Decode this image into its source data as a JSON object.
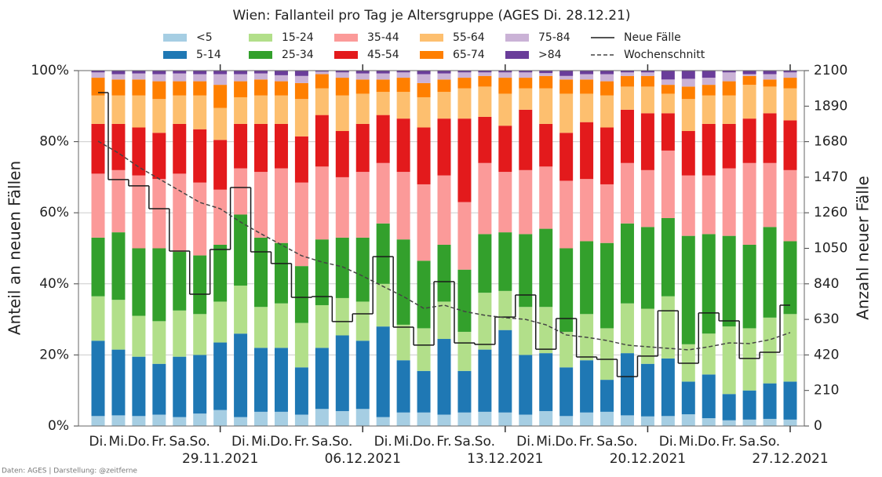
{
  "chart_data": {
    "type": "bar",
    "stacked": true,
    "title": "Wien: Fallanteil pro Tag je Altersgruppe (AGES Di. 28.12.21)",
    "ylabel": "Anteil an neuen Fällen",
    "y2label": "Anzahl neuer Fälle",
    "source": "Daten: AGES | Darstellung: @zeitferne",
    "categories": [
      "Di.",
      "Mi.",
      "Do.",
      "Fr.",
      "Sa.",
      "So.",
      "29.11.2021",
      "Di.",
      "Mi.",
      "Do.",
      "Fr.",
      "Sa.",
      "So.",
      "06.12.2021",
      "Di.",
      "Mi.",
      "Do.",
      "Fr.",
      "Sa.",
      "So.",
      "13.12.2021",
      "Di.",
      "Mi.",
      "Do.",
      "Fr.",
      "Sa.",
      "So.",
      "20.12.2021",
      "Di.",
      "Mi.",
      "Do.",
      "Fr.",
      "Sa.",
      "So.",
      "27.12.2021"
    ],
    "series": [
      {
        "name": "<5",
        "color": "#a6cee3",
        "values": [
          2.8,
          3,
          2.8,
          3.2,
          2.5,
          3.5,
          4.5,
          2.5,
          4,
          4,
          3.2,
          4.8,
          4.2,
          4.8,
          2.5,
          3.8,
          3.8,
          3.2,
          3.8,
          4,
          3.8,
          3.2,
          4.2,
          2.8,
          3.8,
          4,
          3,
          2.7,
          2.8,
          3.3,
          2.2,
          1.6,
          1.8,
          2,
          1.8
        ]
      },
      {
        "name": "5-14",
        "color": "#1f78b4",
        "values": [
          21.2,
          18.5,
          16.7,
          14.3,
          17,
          16.5,
          19,
          23.5,
          18,
          18,
          13.3,
          17.2,
          21.3,
          19.2,
          25.5,
          14.7,
          11.7,
          21.3,
          11.7,
          17.5,
          23.2,
          16.8,
          16.3,
          13.7,
          14.7,
          9,
          17.5,
          14.8,
          16.2,
          9.2,
          12.3,
          7.4,
          8.2,
          10,
          10.7
        ]
      },
      {
        "name": "15-24",
        "color": "#b2df8a",
        "values": [
          12.5,
          14,
          11.5,
          12,
          13,
          11.5,
          11.5,
          13.5,
          11.5,
          12.5,
          12.5,
          12,
          10.5,
          11,
          12,
          10,
          12,
          10.5,
          11,
          16,
          11,
          13.5,
          13,
          10,
          13,
          14.5,
          14,
          15.5,
          17.5,
          10.5,
          11.5,
          19,
          17.5,
          18.5,
          19
        ]
      },
      {
        "name": "25-34",
        "color": "#33a02c",
        "values": [
          16.5,
          19,
          19,
          20.5,
          16.5,
          16.5,
          16,
          20,
          19.5,
          17,
          16,
          18.5,
          17,
          18,
          17,
          24,
          19,
          16,
          17.5,
          16.5,
          16.5,
          20.5,
          22,
          23.5,
          20.5,
          24,
          22.5,
          23,
          22,
          30.5,
          28,
          25.5,
          23.5,
          25.5,
          20.5
        ]
      },
      {
        "name": "35-44",
        "color": "#fb9a99",
        "values": [
          18,
          17.5,
          20.5,
          19.5,
          22,
          20.5,
          15.5,
          13,
          18.5,
          21,
          23.5,
          20.5,
          17,
          18.5,
          17,
          19,
          21.5,
          19.5,
          19,
          20,
          17,
          18,
          17.5,
          19,
          17.5,
          16.5,
          17,
          16,
          19,
          17,
          16.5,
          19,
          23,
          18,
          20
        ]
      },
      {
        "name": "45-54",
        "color": "#e31a1c",
        "values": [
          14,
          13,
          13.5,
          13,
          14,
          15,
          14,
          12.5,
          13.5,
          12.5,
          13,
          14.5,
          13,
          13.5,
          13.5,
          15,
          16,
          16,
          23.5,
          13,
          13,
          17,
          12,
          13.5,
          16,
          16,
          15,
          16,
          10.5,
          12.5,
          14.5,
          12.5,
          12.5,
          14,
          14
        ]
      },
      {
        "name": "55-64",
        "color": "#fdbf6f",
        "values": [
          8,
          8,
          9,
          9.5,
          8,
          9.5,
          9,
          7.5,
          8,
          8,
          10.5,
          7.5,
          10,
          8.5,
          6.5,
          7.5,
          8.5,
          7.5,
          8.5,
          8.5,
          9,
          6,
          10,
          11,
          8,
          9,
          6.5,
          7.5,
          5.5,
          9,
          8,
          8,
          9.5,
          7.5,
          9
        ]
      },
      {
        "name": "65-74",
        "color": "#ff7f00",
        "values": [
          5,
          4.5,
          4.5,
          5,
          4,
          4,
          6.5,
          4.5,
          4.5,
          4,
          4.5,
          4,
          5,
          4,
          3.5,
          4,
          4,
          3.5,
          3,
          3,
          4.5,
          3,
          3.5,
          4,
          4,
          4,
          3,
          3,
          2.5,
          3.5,
          3,
          4,
          2.5,
          2,
          3
        ]
      },
      {
        "name": "75-84",
        "color": "#cab2d6",
        "values": [
          1.5,
          1.5,
          1.7,
          2,
          2.2,
          2,
          3,
          2,
          1.7,
          1.7,
          2,
          0.7,
          1.5,
          1.7,
          1.7,
          1.5,
          2.5,
          1.7,
          1.5,
          1,
          1.5,
          1.5,
          0.8,
          1,
          1.5,
          2,
          1,
          1,
          1.5,
          2.2,
          2,
          2.5,
          0.5,
          1.5,
          1.5
        ]
      },
      {
        "name": ">84",
        "color": "#6a3d9a",
        "values": [
          0.5,
          1,
          0.8,
          1,
          0.8,
          1,
          1,
          1,
          0.8,
          1.3,
          1.5,
          0.3,
          0.5,
          0.8,
          0.8,
          0.5,
          1,
          0.8,
          0.5,
          0.5,
          0.5,
          0.5,
          0.7,
          1.5,
          1,
          1,
          0.5,
          0.5,
          2.5,
          2.3,
          2,
          0.5,
          1,
          1,
          0.5
        ]
      },
      {
        "name": "Neue Fälle",
        "type": "line",
        "style": "step",
        "axis": "y2",
        "color": "#1a1a1a",
        "values": [
          1970,
          1456,
          1419,
          1284,
          1034,
          779,
          1043,
          1409,
          1029,
          960,
          760,
          765,
          617,
          663,
          1001,
          584,
          478,
          853,
          491,
          482,
          644,
          774,
          454,
          635,
          408,
          394,
          292,
          413,
          681,
          371,
          668,
          621,
          399,
          436,
          714
        ]
      },
      {
        "name": "Wochenschnitt",
        "type": "line",
        "style": "dashed",
        "axis": "y2",
        "color": "#444444",
        "values": [
          1683,
          1613,
          1530,
          1460,
          1391,
          1321,
          1284,
          1205,
          1136,
          1071,
          1006,
          969,
          941,
          886,
          825,
          765,
          695,
          714,
          677,
          654,
          640,
          630,
          598,
          538,
          524,
          505,
          478,
          468,
          459,
          450,
          468,
          491,
          487,
          510,
          552
        ]
      }
    ],
    "ylim": [
      0,
      100
    ],
    "yticks": [
      {
        "value": 0,
        "label": "0%"
      },
      {
        "value": 20,
        "label": "20%"
      },
      {
        "value": 40,
        "label": "40%"
      },
      {
        "value": 60,
        "label": "60%"
      },
      {
        "value": 80,
        "label": "80%"
      },
      {
        "value": 100,
        "label": "100%"
      }
    ],
    "y2lim": [
      0,
      2100
    ],
    "y2ticks": [
      0,
      210,
      420,
      630,
      840,
      1050,
      1260,
      1470,
      1680,
      1890,
      2100
    ],
    "grid": true,
    "legend": "top"
  }
}
